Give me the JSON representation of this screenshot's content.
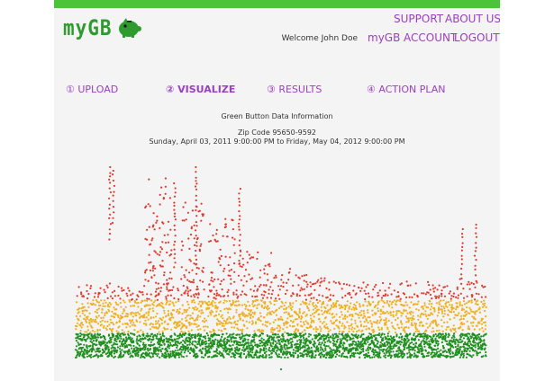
{
  "brand": {
    "name": "myGB"
  },
  "header": {
    "support": "SUPPORT",
    "about": "ABOUT US",
    "welcome": "Welcome John Doe",
    "mygb": "myGB",
    "account": "ACCOUNT",
    "logout": "LOGOUT"
  },
  "steps": [
    {
      "label": "① UPLOAD",
      "active": false
    },
    {
      "label": "② VISUALIZE",
      "active": true
    },
    {
      "label": "③ RESULTS",
      "active": false
    },
    {
      "label": "④ ACTION PLAN",
      "active": false
    }
  ],
  "info": {
    "title": "Green Button Data Information",
    "zip": "Zip Code 95650-9592",
    "range": "Sunday, April 03, 2011 9:00:00 PM to Friday, May 04, 2012 9:00:00 PM"
  },
  "colors": {
    "accent": "#9b3fc0",
    "topbar": "#4cc43a",
    "low": "#1f8f1f",
    "mid": "#f0b020",
    "high": "#e03a2e"
  },
  "chart_data": {
    "type": "scatter",
    "x_range": [
      "2011-04-03",
      "2012-05-04"
    ],
    "series": [
      {
        "color": "#1f8f1f"
      },
      {
        "color": "#f0b020"
      },
      {
        "color": "#e03a2e"
      }
    ]
  }
}
